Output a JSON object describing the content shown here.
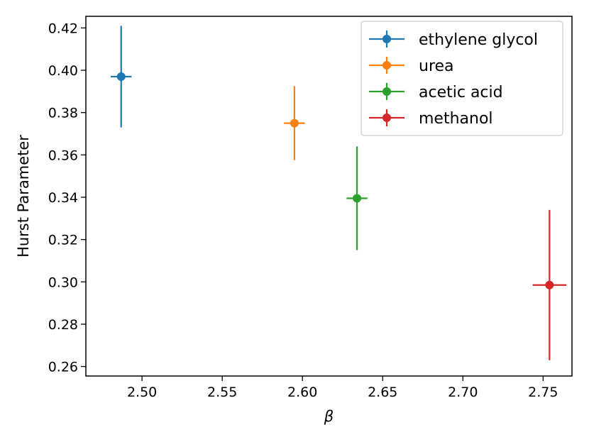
{
  "chart_data": {
    "type": "scatter",
    "xlabel": "β",
    "ylabel": "Hurst Parameter",
    "xlim": [
      2.465,
      2.768
    ],
    "ylim": [
      0.2555,
      0.4255
    ],
    "x_ticks": [
      2.5,
      2.55,
      2.6,
      2.65,
      2.7,
      2.75
    ],
    "x_tick_labels": [
      "2.50",
      "2.55",
      "2.60",
      "2.65",
      "2.70",
      "2.75"
    ],
    "y_ticks": [
      0.26,
      0.28,
      0.3,
      0.32,
      0.34,
      0.36,
      0.38,
      0.4,
      0.42
    ],
    "y_tick_labels": [
      "0.26",
      "0.28",
      "0.30",
      "0.32",
      "0.34",
      "0.36",
      "0.38",
      "0.40",
      "0.42"
    ],
    "grid": false,
    "legend_position": "top-right",
    "series": [
      {
        "name": "ethylene glycol",
        "color": "#1f77b4",
        "x": 2.487,
        "y": 0.397,
        "x_err": 0.0065,
        "y_err": 0.024
      },
      {
        "name": "urea",
        "color": "#ff7f0e",
        "x": 2.595,
        "y": 0.375,
        "x_err": 0.0065,
        "y_err": 0.0175
      },
      {
        "name": "acetic acid",
        "color": "#2ca02c",
        "x": 2.634,
        "y": 0.3395,
        "x_err": 0.0065,
        "y_err": 0.0245
      },
      {
        "name": "methanol",
        "color": "#d62728",
        "x": 2.754,
        "y": 0.2985,
        "x_err": 0.0105,
        "y_err": 0.0355
      }
    ]
  }
}
